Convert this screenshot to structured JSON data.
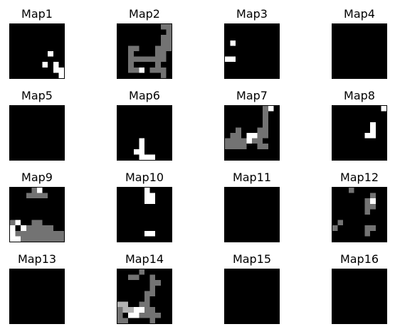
{
  "chart_data": {
    "type": "heatmap",
    "grid": {
      "rows": 4,
      "cols": 4,
      "map_size": 10
    },
    "colormap": {
      "min_color": "#000000",
      "max_color": "#ffffff",
      "vmin": 0,
      "vmax": 1
    },
    "frame_color": "#000000",
    "maps": [
      {
        "title": "Map1",
        "cells": [
          [
            7,
            8,
            1
          ],
          [
            8,
            6,
            1
          ],
          [
            9,
            8,
            1
          ],
          [
            9,
            9,
            1
          ],
          [
            10,
            9,
            1
          ],
          [
            10,
            10,
            1
          ]
        ]
      },
      {
        "title": "Map2",
        "cells": [
          [
            9,
            1,
            0.45
          ],
          [
            10,
            1,
            0.45
          ],
          [
            10,
            2,
            0.45
          ],
          [
            9,
            3,
            0.45
          ],
          [
            10,
            3,
            0.45
          ],
          [
            9,
            4,
            0.45
          ],
          [
            10,
            4,
            0.45
          ],
          [
            3,
            5,
            0.45
          ],
          [
            4,
            5,
            0.45
          ],
          [
            8,
            5,
            0.45
          ],
          [
            9,
            5,
            0.45
          ],
          [
            10,
            5,
            0.45
          ],
          [
            3,
            6,
            0.45
          ],
          [
            8,
            6,
            0.45
          ],
          [
            9,
            6,
            0.45
          ],
          [
            3,
            7,
            0.45
          ],
          [
            4,
            7,
            0.45
          ],
          [
            5,
            7,
            0.45
          ],
          [
            6,
            7,
            0.45
          ],
          [
            7,
            7,
            0.45
          ],
          [
            8,
            7,
            0.45
          ],
          [
            9,
            7,
            0.45
          ],
          [
            3,
            8,
            0.45
          ],
          [
            8,
            8,
            0.45
          ],
          [
            3,
            9,
            0.45
          ],
          [
            4,
            9,
            0.45
          ],
          [
            5,
            9,
            1
          ],
          [
            7,
            9,
            0.45
          ],
          [
            8,
            9,
            0.45
          ],
          [
            9,
            9,
            0.45
          ],
          [
            9,
            10,
            0.45
          ]
        ]
      },
      {
        "title": "Map3",
        "cells": [
          [
            2,
            4,
            1
          ],
          [
            1,
            7,
            1
          ],
          [
            2,
            7,
            1
          ]
        ]
      },
      {
        "title": "Map4",
        "cells": []
      },
      {
        "title": "Map5",
        "cells": []
      },
      {
        "title": "Map6",
        "cells": [
          [
            5,
            7,
            1
          ],
          [
            5,
            8,
            1
          ],
          [
            4,
            9,
            1
          ],
          [
            5,
            9,
            1
          ],
          [
            5,
            10,
            1
          ],
          [
            6,
            10,
            1
          ],
          [
            7,
            10,
            1
          ]
        ]
      },
      {
        "title": "Map7",
        "cells": [
          [
            8,
            1,
            0.45
          ],
          [
            9,
            1,
            1
          ],
          [
            8,
            2,
            0.45
          ],
          [
            8,
            3,
            0.45
          ],
          [
            8,
            4,
            0.45
          ],
          [
            3,
            5,
            0.45
          ],
          [
            7,
            5,
            0.45
          ],
          [
            8,
            5,
            0.45
          ],
          [
            2,
            6,
            0.45
          ],
          [
            3,
            6,
            0.45
          ],
          [
            5,
            6,
            1
          ],
          [
            6,
            6,
            1
          ],
          [
            7,
            6,
            0.45
          ],
          [
            8,
            6,
            0.45
          ],
          [
            1,
            7,
            0.45
          ],
          [
            2,
            7,
            0.45
          ],
          [
            3,
            7,
            0.45
          ],
          [
            4,
            7,
            0.45
          ],
          [
            5,
            7,
            1
          ],
          [
            6,
            7,
            0.45
          ],
          [
            7,
            7,
            0.45
          ],
          [
            1,
            8,
            0.45
          ],
          [
            2,
            8,
            0.45
          ],
          [
            3,
            8,
            0.45
          ],
          [
            4,
            8,
            0.45
          ],
          [
            7,
            8,
            0.45
          ],
          [
            8,
            8,
            0.45
          ]
        ]
      },
      {
        "title": "Map8",
        "cells": [
          [
            10,
            1,
            1
          ],
          [
            8,
            4,
            1
          ],
          [
            8,
            5,
            1
          ],
          [
            8,
            6,
            1
          ],
          [
            7,
            6,
            1
          ]
        ]
      },
      {
        "title": "Map9",
        "cells": [
          [
            6,
            1,
            1
          ],
          [
            5,
            1,
            0.45
          ],
          [
            5,
            2,
            0.45
          ],
          [
            4,
            2,
            0.45
          ],
          [
            7,
            2,
            0.45
          ],
          [
            6,
            2,
            0.45
          ],
          [
            5,
            7,
            0.45
          ],
          [
            6,
            7,
            0.45
          ],
          [
            1,
            7,
            0.45
          ],
          [
            2,
            7,
            1
          ],
          [
            3,
            8,
            1
          ],
          [
            4,
            8,
            0.45
          ],
          [
            5,
            8,
            0.45
          ],
          [
            6,
            8,
            0.45
          ],
          [
            7,
            8,
            0.45
          ],
          [
            8,
            8,
            0.45
          ],
          [
            1,
            8,
            1
          ],
          [
            1,
            9,
            1
          ],
          [
            2,
            9,
            0.45
          ],
          [
            3,
            9,
            0.45
          ],
          [
            4,
            9,
            0.45
          ],
          [
            5,
            9,
            0.45
          ],
          [
            6,
            9,
            0.45
          ],
          [
            7,
            9,
            0.45
          ],
          [
            8,
            9,
            0.45
          ],
          [
            9,
            9,
            0.45
          ],
          [
            10,
            9,
            0.45
          ],
          [
            1,
            10,
            1
          ],
          [
            2,
            10,
            1
          ],
          [
            3,
            10,
            0.45
          ],
          [
            4,
            10,
            0.45
          ],
          [
            5,
            10,
            0.45
          ],
          [
            6,
            10,
            0.45
          ],
          [
            7,
            10,
            0.45
          ],
          [
            8,
            10,
            0.45
          ],
          [
            9,
            10,
            0.45
          ],
          [
            10,
            10,
            0.45
          ]
        ]
      },
      {
        "title": "Map10",
        "cells": [
          [
            6,
            1,
            1
          ],
          [
            6,
            2,
            1
          ],
          [
            7,
            2,
            1
          ],
          [
            6,
            3,
            1
          ],
          [
            7,
            3,
            1
          ],
          [
            6,
            9,
            1
          ],
          [
            7,
            9,
            1
          ]
        ]
      },
      {
        "title": "Map11",
        "cells": []
      },
      {
        "title": "Map12",
        "cells": [
          [
            4,
            1,
            0.45
          ],
          [
            8,
            2,
            0.45
          ],
          [
            7,
            3,
            0.45
          ],
          [
            8,
            3,
            1
          ],
          [
            7,
            4,
            0.45
          ],
          [
            8,
            4,
            0.45
          ],
          [
            7,
            5,
            0.45
          ],
          [
            2,
            7,
            0.45
          ],
          [
            1,
            8,
            0.45
          ],
          [
            7,
            8,
            0.45
          ],
          [
            8,
            8,
            0.45
          ],
          [
            7,
            9,
            0.45
          ]
        ]
      },
      {
        "title": "Map13",
        "cells": []
      },
      {
        "title": "Map14",
        "cells": [
          [
            5,
            1,
            0.45
          ],
          [
            3,
            2,
            0.45
          ],
          [
            4,
            2,
            0.45
          ],
          [
            7,
            2,
            0.45
          ],
          [
            7,
            3,
            0.45
          ],
          [
            8,
            3,
            0.45
          ],
          [
            7,
            4,
            0.45
          ],
          [
            6,
            5,
            0.45
          ],
          [
            7,
            5,
            0.45
          ],
          [
            6,
            6,
            0.45
          ],
          [
            1,
            7,
            0.7
          ],
          [
            2,
            7,
            0.7
          ],
          [
            5,
            7,
            0.45
          ],
          [
            6,
            7,
            0.45
          ],
          [
            1,
            8,
            0.45
          ],
          [
            2,
            8,
            0.7
          ],
          [
            3,
            8,
            0.7
          ],
          [
            4,
            8,
            1
          ],
          [
            5,
            8,
            1
          ],
          [
            6,
            8,
            0.45
          ],
          [
            7,
            8,
            0.45
          ],
          [
            1,
            9,
            0.45
          ],
          [
            3,
            9,
            1
          ],
          [
            4,
            9,
            1
          ],
          [
            5,
            9,
            0.45
          ],
          [
            6,
            9,
            0.45
          ],
          [
            7,
            9,
            0.45
          ],
          [
            8,
            9,
            0.45
          ],
          [
            1,
            10,
            0.45
          ],
          [
            2,
            10,
            0.45
          ],
          [
            7,
            10,
            0.45
          ]
        ]
      },
      {
        "title": "Map15",
        "cells": []
      },
      {
        "title": "Map16",
        "cells": []
      }
    ]
  }
}
